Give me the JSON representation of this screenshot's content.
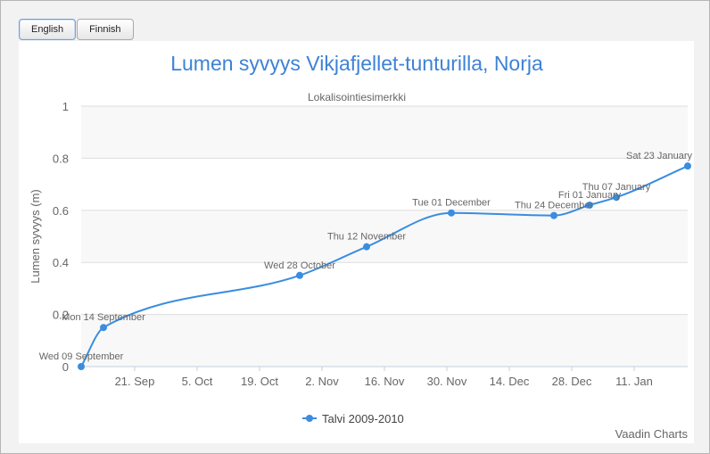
{
  "language_buttons": [
    {
      "label": "English",
      "selected": true
    },
    {
      "label": "Finnish",
      "selected": false
    }
  ],
  "colors": {
    "series": "#3a8de0",
    "title": "#3d82d6",
    "plot_band": "#f8f8f8",
    "grid": "#dddddd"
  },
  "credits": "Vaadin Charts",
  "chart_data": {
    "type": "line",
    "title": "Lumen syvyys Vikjafjellet-tunturilla, Norja",
    "subtitle": "Lokalisointiesimerkki",
    "ylabel": "Lumen syvyys (m)",
    "xlabel": "",
    "ylim": [
      0,
      1
    ],
    "yticks": [
      "0",
      "0.2",
      "0.4",
      "0.6",
      "0.8",
      "1"
    ],
    "xaxis_type": "datetime",
    "xlim": [
      "2009-09-09",
      "2010-01-23"
    ],
    "xticks": [
      {
        "date": "2009-09-21",
        "label": "21. Sep"
      },
      {
        "date": "2009-10-05",
        "label": "5. Oct"
      },
      {
        "date": "2009-10-19",
        "label": "19. Oct"
      },
      {
        "date": "2009-11-02",
        "label": "2. Nov"
      },
      {
        "date": "2009-11-16",
        "label": "16. Nov"
      },
      {
        "date": "2009-11-30",
        "label": "30. Nov"
      },
      {
        "date": "2009-12-14",
        "label": "14. Dec"
      },
      {
        "date": "2009-12-28",
        "label": "28. Dec"
      },
      {
        "date": "2010-01-11",
        "label": "11. Jan"
      }
    ],
    "grid": true,
    "legend_position": "bottom-center",
    "series": [
      {
        "name": "Talvi 2009-2010",
        "points": [
          {
            "x": "2009-09-09",
            "y": 0,
            "label": "Wed 09 September"
          },
          {
            "x": "2009-09-14",
            "y": 0.15,
            "label": "Mon 14 September"
          },
          {
            "x": "2009-10-28",
            "y": 0.35,
            "label": "Wed 28 October"
          },
          {
            "x": "2009-11-12",
            "y": 0.46,
            "label": "Thu 12 November"
          },
          {
            "x": "2009-12-01",
            "y": 0.59,
            "label": "Tue 01 December"
          },
          {
            "x": "2009-12-24",
            "y": 0.58,
            "label": "Thu 24 December"
          },
          {
            "x": "2010-01-01",
            "y": 0.62,
            "label": "Fri 01 January"
          },
          {
            "x": "2010-01-07",
            "y": 0.65,
            "label": "Thu 07 January"
          },
          {
            "x": "2010-01-23",
            "y": 0.77,
            "label": "Sat 23 January"
          }
        ]
      }
    ]
  }
}
